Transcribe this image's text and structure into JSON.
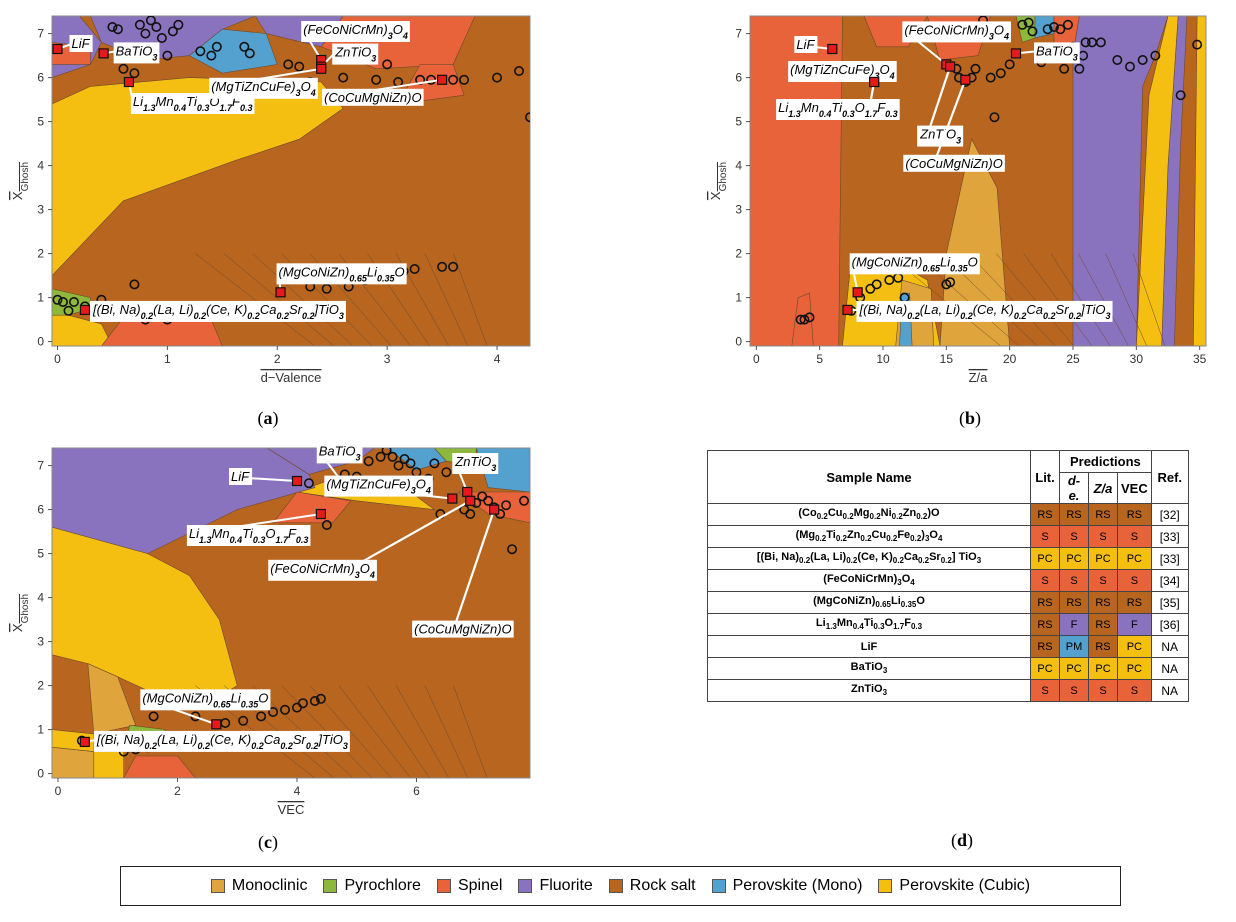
{
  "colors": {
    "Monoclinic": "#e0a43c",
    "Pyrochlore": "#8db83b",
    "Spinel": "#e8633a",
    "Fluorite": "#8a73be",
    "Rock salt": "#b8651f",
    "Perovskite (Mono)": "#54a0cf",
    "Perovskite (Cubic)": "#f5bf12"
  },
  "panel_tags": [
    "a",
    "b",
    "c",
    "d"
  ],
  "legend": [
    "Monoclinic",
    "Pyrochlore",
    "Spinel",
    "Fluorite",
    "Rock salt",
    "Perovskite (Mono)",
    "Perovskite (Cubic)"
  ],
  "chart_data": [
    {
      "type": "scatter",
      "panel": "a",
      "xlabel": "d−Valence",
      "ylabel": "X",
      "ylabel_sub": "Ghosh",
      "xlim": [
        -0.05,
        4.3
      ],
      "ylim": [
        -0.1,
        7.4
      ],
      "xticks": [
        "0",
        "1",
        "2",
        "3",
        "4"
      ],
      "yticks": [
        "0",
        "1",
        "2",
        "3",
        "4",
        "5",
        "6",
        "7"
      ],
      "training_points": [
        [
          0.0,
          0.95
        ],
        [
          0.05,
          0.9
        ],
        [
          0.1,
          0.7
        ],
        [
          0.15,
          0.9
        ],
        [
          0.25,
          0.8
        ],
        [
          0.4,
          0.95
        ],
        [
          0.5,
          7.15
        ],
        [
          0.55,
          7.1
        ],
        [
          0.6,
          6.2
        ],
        [
          0.7,
          6.1
        ],
        [
          0.75,
          7.2
        ],
        [
          0.8,
          7.0
        ],
        [
          0.85,
          7.3
        ],
        [
          0.9,
          7.15
        ],
        [
          0.95,
          6.9
        ],
        [
          1.0,
          6.5
        ],
        [
          1.05,
          7.05
        ],
        [
          1.1,
          7.2
        ],
        [
          1.3,
          6.6
        ],
        [
          1.4,
          6.5
        ],
        [
          1.45,
          6.7
        ],
        [
          1.6,
          5.6
        ],
        [
          1.7,
          6.7
        ],
        [
          1.75,
          6.55
        ],
        [
          0.7,
          1.3
        ],
        [
          0.8,
          0.5
        ],
        [
          0.9,
          0.6
        ],
        [
          1.0,
          0.5
        ],
        [
          1.1,
          0.6
        ],
        [
          2.1,
          6.3
        ],
        [
          2.2,
          6.25
        ],
        [
          2.3,
          5.9
        ],
        [
          2.4,
          6.3
        ],
        [
          2.6,
          6.0
        ],
        [
          2.9,
          5.95
        ],
        [
          3.0,
          6.3
        ],
        [
          3.1,
          5.9
        ],
        [
          3.3,
          5.95
        ],
        [
          3.4,
          5.95
        ],
        [
          3.6,
          5.95
        ],
        [
          3.7,
          5.95
        ],
        [
          4.0,
          6.0
        ],
        [
          4.2,
          6.15
        ],
        [
          4.3,
          5.1
        ],
        [
          2.3,
          1.25
        ],
        [
          2.45,
          1.2
        ],
        [
          2.65,
          1.25
        ],
        [
          2.8,
          1.4
        ],
        [
          2.95,
          1.5
        ],
        [
          3.15,
          1.6
        ],
        [
          3.25,
          1.65
        ],
        [
          3.5,
          1.7
        ],
        [
          3.6,
          1.7
        ]
      ],
      "samples": [
        {
          "label": "LiF",
          "x": 0.0,
          "y": 6.65
        },
        {
          "label": "BaTiO3",
          "x": 0.42,
          "y": 6.55
        },
        {
          "label": "Li1.3Mn0.4Ti0.3O1.7F0.3",
          "x": 0.65,
          "y": 5.9
        },
        {
          "label": "(FeCoNiCrMn)3O4",
          "x": 2.4,
          "y": 6.4
        },
        {
          "label": "ZnTiO3",
          "x": 2.4,
          "y": 6.25
        },
        {
          "label": "(MgTiZnCuFe)3O4",
          "x": 2.4,
          "y": 6.2
        },
        {
          "label": "(CoCuMgNiZn)O",
          "x": 3.5,
          "y": 5.95
        },
        {
          "label": "(MgCoNiZn)0.65Li0.35O",
          "x": 2.03,
          "y": 1.12
        },
        {
          "label": "[(Bi, Na)0.2(La, Li)0.2(Ce, K)0.2Ca0.2Sr0.2]TiO3",
          "x": 0.25,
          "y": 0.72
        }
      ]
    },
    {
      "type": "scatter",
      "panel": "b",
      "xlabel": "Z/a",
      "ylabel": "X",
      "ylabel_sub": "Ghosh",
      "xlim": [
        -0.5,
        35.5
      ],
      "ylim": [
        -0.1,
        7.4
      ],
      "xticks": [
        "0",
        "5",
        "10",
        "15",
        "20",
        "25",
        "30",
        "35"
      ],
      "yticks": [
        "0",
        "1",
        "2",
        "3",
        "4",
        "5",
        "6",
        "7"
      ],
      "training_points": [
        [
          3.5,
          0.5
        ],
        [
          3.8,
          0.5
        ],
        [
          4.2,
          0.55
        ],
        [
          7.5,
          0.7
        ],
        [
          8.2,
          1.0
        ],
        [
          9.0,
          1.2
        ],
        [
          9.5,
          1.3
        ],
        [
          10.5,
          1.4
        ],
        [
          11.2,
          1.45
        ],
        [
          11.7,
          1.0
        ],
        [
          15.0,
          1.3
        ],
        [
          15.3,
          1.35
        ],
        [
          15.8,
          6.2
        ],
        [
          16.0,
          6.0
        ],
        [
          16.5,
          5.9
        ],
        [
          17.0,
          6.0
        ],
        [
          17.3,
          6.2
        ],
        [
          17.9,
          7.3
        ],
        [
          18.5,
          6.0
        ],
        [
          18.8,
          5.1
        ],
        [
          19.3,
          6.1
        ],
        [
          20.0,
          6.3
        ],
        [
          21.0,
          7.2
        ],
        [
          21.5,
          7.25
        ],
        [
          21.8,
          7.05
        ],
        [
          22.5,
          6.35
        ],
        [
          23.0,
          7.1
        ],
        [
          23.5,
          7.15
        ],
        [
          24.0,
          7.1
        ],
        [
          24.3,
          6.2
        ],
        [
          24.6,
          7.2
        ],
        [
          25.0,
          6.7
        ],
        [
          25.5,
          6.2
        ],
        [
          25.8,
          6.5
        ],
        [
          26.0,
          6.8
        ],
        [
          26.5,
          6.8
        ],
        [
          27.2,
          6.8
        ],
        [
          28.5,
          6.4
        ],
        [
          29.5,
          6.25
        ],
        [
          30.5,
          6.4
        ],
        [
          31.5,
          6.5
        ],
        [
          33.5,
          5.6
        ],
        [
          34.8,
          6.75
        ]
      ],
      "samples": [
        {
          "label": "LiF",
          "x": 6.0,
          "y": 6.65
        },
        {
          "label": "(MgTiZnCuFe)3O4",
          "x": 9.3,
          "y": 5.9
        },
        {
          "label": "Li1.3Mn0.4Ti0.3O1.7F0.3",
          "x": 9.3,
          "y": 5.9
        },
        {
          "label": "(FeCoNiCrMn)3O4",
          "x": 15.0,
          "y": 6.3
        },
        {
          "label": "ZnTiO3",
          "x": 15.3,
          "y": 6.25
        },
        {
          "label": "(CoCuMgNiZn)O",
          "x": 16.5,
          "y": 5.95
        },
        {
          "label": "BaTiO3",
          "x": 20.5,
          "y": 6.55
        },
        {
          "label": "(MgCoNiZn)0.65Li0.35O",
          "x": 8.0,
          "y": 1.12
        },
        {
          "label": "[(Bi, Na)0.2(La, Li)0.2(Ce, K)0.2Ca0.2Sr0.2]TiO3",
          "x": 7.2,
          "y": 0.72
        }
      ]
    },
    {
      "type": "scatter",
      "panel": "c",
      "xlabel": "VEC",
      "ylabel": "X",
      "ylabel_sub": "Ghosh",
      "xlim": [
        -0.1,
        7.9
      ],
      "ylim": [
        -0.1,
        7.4
      ],
      "xticks": [
        "0",
        "2",
        "4",
        "6"
      ],
      "yticks": [
        "0",
        "1",
        "2",
        "3",
        "4",
        "5",
        "6",
        "7"
      ],
      "training_points": [
        [
          0.4,
          0.75
        ],
        [
          1.1,
          0.5
        ],
        [
          1.2,
          0.6
        ],
        [
          1.3,
          0.55
        ],
        [
          1.5,
          0.6
        ],
        [
          1.6,
          1.3
        ],
        [
          2.3,
          1.3
        ],
        [
          2.8,
          1.15
        ],
        [
          3.1,
          1.2
        ],
        [
          3.4,
          1.3
        ],
        [
          3.6,
          1.4
        ],
        [
          3.8,
          1.45
        ],
        [
          4.0,
          1.5
        ],
        [
          4.1,
          1.6
        ],
        [
          4.3,
          1.65
        ],
        [
          4.4,
          1.7
        ],
        [
          4.2,
          6.6
        ],
        [
          4.5,
          5.65
        ],
        [
          4.8,
          6.8
        ],
        [
          5.0,
          6.75
        ],
        [
          5.2,
          7.1
        ],
        [
          5.4,
          7.2
        ],
        [
          5.5,
          7.35
        ],
        [
          5.6,
          7.2
        ],
        [
          5.7,
          7.0
        ],
        [
          5.8,
          7.15
        ],
        [
          5.9,
          7.05
        ],
        [
          6.0,
          6.85
        ],
        [
          6.1,
          6.6
        ],
        [
          6.2,
          6.7
        ],
        [
          6.3,
          7.05
        ],
        [
          6.5,
          6.85
        ],
        [
          6.4,
          5.9
        ],
        [
          6.8,
          6.0
        ],
        [
          6.9,
          5.9
        ],
        [
          7.0,
          6.15
        ],
        [
          7.1,
          6.3
        ],
        [
          7.2,
          6.2
        ],
        [
          7.3,
          6.05
        ],
        [
          7.4,
          5.9
        ],
        [
          7.5,
          6.1
        ],
        [
          7.6,
          5.1
        ],
        [
          7.8,
          6.2
        ]
      ],
      "samples": [
        {
          "label": "BaTiO3",
          "x": 4.8,
          "y": 6.55
        },
        {
          "label": "LiF",
          "x": 4.0,
          "y": 6.65
        },
        {
          "label": "(MgTiZnCuFe)3O4",
          "x": 6.6,
          "y": 6.25
        },
        {
          "label": "ZnTiO3",
          "x": 6.85,
          "y": 6.4
        },
        {
          "label": "Li1.3Mn0.4Ti0.3O1.7F0.3",
          "x": 4.4,
          "y": 5.9
        },
        {
          "label": "(FeCoNiCrMn)3O4",
          "x": 6.9,
          "y": 6.2
        },
        {
          "label": "(CoCuMgNiZn)O",
          "x": 7.3,
          "y": 6.0
        },
        {
          "label": "(MgCoNiZn)0.65Li0.35O",
          "x": 2.65,
          "y": 1.12
        },
        {
          "label": "[(Bi, Na)0.2(La, Li)0.2(Ce, K)0.2Ca0.2Sr0.2]TiO3",
          "x": 0.45,
          "y": 0.72
        }
      ]
    },
    {
      "type": "table",
      "panel": "d",
      "header_top": {
        "sample": "Sample Name",
        "lit": "Lit.",
        "predictions": "Predictions",
        "ref": "Ref."
      },
      "header_sub": [
        "d-e.",
        "Z/a",
        "VEC"
      ],
      "rows": [
        {
          "name": "(Co0.2Cu0.2Mg0.2Ni0.2Zn0.2)O",
          "lit": "RS",
          "de": "RS",
          "za": "RS",
          "vec": "RS",
          "ref": "[32]"
        },
        {
          "name": "(Mg0.2Ti0.2Zn0.2Cu0.2Fe0.2)3O4",
          "lit": "S",
          "de": "S",
          "za": "S",
          "vec": "S",
          "ref": "[33]"
        },
        {
          "name": "[(Bi, Na)0.2(La, Li)0.2(Ce, K)0.2Ca0.2Sr0.2] TiO3",
          "lit": "PC",
          "de": "PC",
          "za": "PC",
          "vec": "PC",
          "ref": "[33]"
        },
        {
          "name": "(FeCoNiCrMn)3O4",
          "lit": "S",
          "de": "S",
          "za": "S",
          "vec": "S",
          "ref": "[34]"
        },
        {
          "name": "(MgCoNiZn)0.65Li0.35O",
          "lit": "RS",
          "de": "RS",
          "za": "RS",
          "vec": "RS",
          "ref": "[35]"
        },
        {
          "name": "Li1.3Mn0.4Ti0.3O1.7F0.3",
          "lit": "RS",
          "de": "F",
          "za": "RS",
          "vec": "F",
          "ref": "[36]"
        },
        {
          "name": "LiF",
          "lit": "RS",
          "de": "PM",
          "za": "RS",
          "vec": "PC",
          "ref": "NA"
        },
        {
          "name": "BaTiO3",
          "lit": "PC",
          "de": "PC",
          "za": "PC",
          "vec": "PC",
          "ref": "NA"
        },
        {
          "name": "ZnTiO3",
          "lit": "S",
          "de": "S",
          "za": "S",
          "vec": "S",
          "ref": "NA"
        }
      ],
      "code_colors": {
        "RS": "#b8651f",
        "S": "#e8633a",
        "PC": "#f5bf12",
        "F": "#8a73be",
        "PM": "#54a0cf"
      }
    }
  ]
}
